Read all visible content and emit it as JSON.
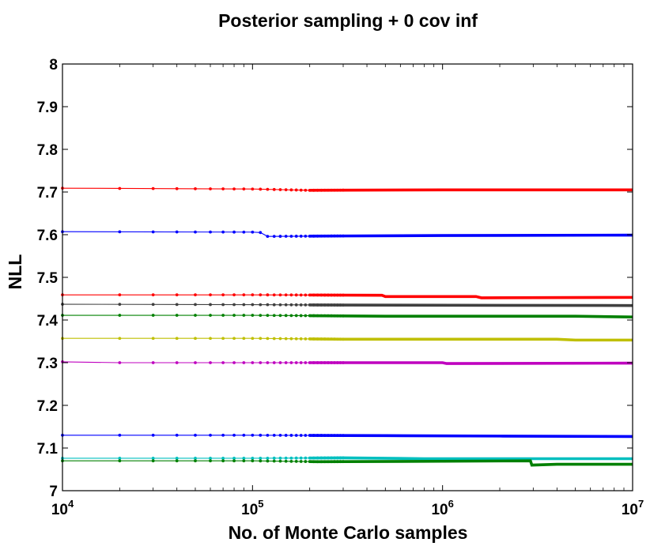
{
  "chart_data": {
    "type": "line",
    "title": "Posterior sampling + 0 cov inf",
    "xlabel": "No. of Monte Carlo samples",
    "ylabel": "NLL",
    "xscale": "log",
    "xlim": [
      10000,
      10000000
    ],
    "ylim": [
      7.0,
      8.0
    ],
    "grid": false,
    "x_ticks": [
      {
        "base": "10",
        "exp": "4",
        "value": 10000
      },
      {
        "base": "10",
        "exp": "5",
        "value": 100000
      },
      {
        "base": "10",
        "exp": "6",
        "value": 1000000
      },
      {
        "base": "10",
        "exp": "7",
        "value": 10000000
      }
    ],
    "y_ticks": [
      "7",
      "7.1",
      "7.2",
      "7.3",
      "7.4",
      "7.5",
      "7.6",
      "7.7",
      "7.8",
      "7.9",
      "8"
    ],
    "series": [
      {
        "name": "red-1",
        "color": "#ff0000",
        "points": [
          [
            10000,
            7.709
          ],
          [
            100000,
            7.707
          ],
          [
            200000,
            7.704
          ],
          [
            1000000,
            7.705
          ],
          [
            10000000,
            7.705
          ]
        ]
      },
      {
        "name": "blue-1",
        "color": "#0000ff",
        "points": [
          [
            10000,
            7.607
          ],
          [
            100000,
            7.606
          ],
          [
            110000,
            7.605
          ],
          [
            120000,
            7.596
          ],
          [
            300000,
            7.597
          ],
          [
            1000000,
            7.598
          ],
          [
            10000000,
            7.599
          ]
        ]
      },
      {
        "name": "red-2",
        "color": "#ff0000",
        "points": [
          [
            10000,
            7.459
          ],
          [
            100000,
            7.459
          ],
          [
            480000,
            7.458
          ],
          [
            500000,
            7.455
          ],
          [
            1500000,
            7.455
          ],
          [
            1600000,
            7.452
          ],
          [
            10000000,
            7.453
          ]
        ]
      },
      {
        "name": "dark-gray",
        "color": "#404040",
        "points": [
          [
            10000,
            7.437
          ],
          [
            100000,
            7.436
          ],
          [
            300000,
            7.435
          ],
          [
            10000000,
            7.434
          ]
        ]
      },
      {
        "name": "green-1",
        "color": "#008000",
        "points": [
          [
            10000,
            7.411
          ],
          [
            100000,
            7.411
          ],
          [
            500000,
            7.409
          ],
          [
            5000000,
            7.409
          ],
          [
            10000000,
            7.407
          ]
        ]
      },
      {
        "name": "yellow",
        "color": "#bfbf00",
        "points": [
          [
            10000,
            7.357
          ],
          [
            100000,
            7.357
          ],
          [
            300000,
            7.355
          ],
          [
            4000000,
            7.355
          ],
          [
            5000000,
            7.353
          ],
          [
            10000000,
            7.353
          ]
        ]
      },
      {
        "name": "magenta",
        "color": "#bf00bf",
        "points": [
          [
            10000,
            7.302
          ],
          [
            20000,
            7.3
          ],
          [
            100000,
            7.3
          ],
          [
            1000000,
            7.3
          ],
          [
            1050000,
            7.298
          ],
          [
            10000000,
            7.299
          ]
        ]
      },
      {
        "name": "blue-2",
        "color": "#0000ff",
        "points": [
          [
            10000,
            7.13
          ],
          [
            100000,
            7.13
          ],
          [
            500000,
            7.129
          ],
          [
            2000000,
            7.128
          ],
          [
            10000000,
            7.127
          ]
        ]
      },
      {
        "name": "cyan",
        "color": "#00bfbf",
        "points": [
          [
            10000,
            7.076
          ],
          [
            100000,
            7.076
          ],
          [
            300000,
            7.077
          ],
          [
            800000,
            7.075
          ],
          [
            10000000,
            7.075
          ]
        ]
      },
      {
        "name": "green-2",
        "color": "#008000",
        "points": [
          [
            10000,
            7.07
          ],
          [
            100000,
            7.07
          ],
          [
            220000,
            7.068
          ],
          [
            1000000,
            7.069
          ],
          [
            2900000,
            7.07
          ],
          [
            2950000,
            7.06
          ],
          [
            4000000,
            7.062
          ],
          [
            10000000,
            7.062
          ]
        ]
      }
    ]
  }
}
